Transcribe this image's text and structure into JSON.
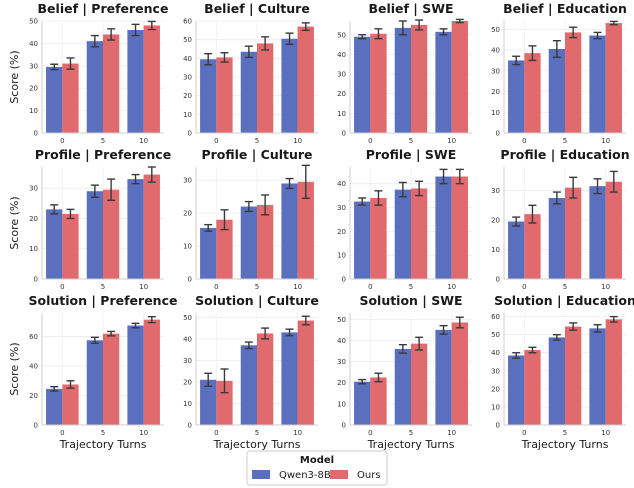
{
  "chart_data": {
    "type": "bar",
    "rows": [
      "Belief",
      "Profile",
      "Solution"
    ],
    "cols": [
      "Preference",
      "Culture",
      "SWE",
      "Education"
    ],
    "categories": [
      "0",
      "5",
      "10"
    ],
    "xlabel": "Trajectory Turns",
    "ylabel": "Score (%)",
    "legend": {
      "title": "Model",
      "position": "bottom-center"
    },
    "series_meta": [
      {
        "name": "Qwen3-8B",
        "color": "#5b6fbf"
      },
      {
        "name": "Ours",
        "color": "#e06a6d"
      }
    ],
    "panels": [
      {
        "title": "Belief | Preference",
        "ylim": [
          0,
          50
        ],
        "yticks": [
          0,
          10,
          20,
          30,
          40,
          50
        ],
        "series": [
          {
            "values": [
              29.5,
              41,
              46
            ],
            "err": [
              1.2,
              2.5,
              2.5
            ]
          },
          {
            "values": [
              31,
              44,
              48
            ],
            "err": [
              2.5,
              2.5,
              1.8
            ]
          }
        ]
      },
      {
        "title": "Belief | Culture",
        "ylim": [
          0,
          60
        ],
        "yticks": [
          0,
          10,
          20,
          30,
          40,
          50,
          60
        ],
        "series": [
          {
            "values": [
              39.5,
              43.5,
              50.5
            ],
            "err": [
              3,
              3,
              3
            ]
          },
          {
            "values": [
              40.5,
              48,
              57
            ],
            "err": [
              2.5,
              3.5,
              2
            ]
          }
        ]
      },
      {
        "title": "Belief | SWE",
        "ylim": [
          0,
          57
        ],
        "yticks": [
          0,
          10,
          20,
          30,
          40,
          50
        ],
        "series": [
          {
            "values": [
              49,
              53.5,
              51.5
            ],
            "err": [
              1,
              3.5,
              1.5
            ]
          },
          {
            "values": [
              50.5,
              55,
              57
            ],
            "err": [
              2.5,
              2.5,
              0.8
            ]
          }
        ]
      },
      {
        "title": "Belief | Education",
        "ylim": [
          0,
          54
        ],
        "yticks": [
          0,
          10,
          20,
          30,
          40,
          50
        ],
        "series": [
          {
            "values": [
              35,
              40.5,
              47
            ],
            "err": [
              2,
              4,
              1.5
            ]
          },
          {
            "values": [
              38.5,
              48.5,
              53
            ],
            "err": [
              3.5,
              2.5,
              0.8
            ]
          }
        ]
      },
      {
        "title": "Profile | Preference",
        "ylim": [
          0,
          37
        ],
        "yticks": [
          0,
          10,
          20,
          30
        ],
        "series": [
          {
            "values": [
              23,
              29,
              33
            ],
            "err": [
              1.5,
              2,
              1.5
            ]
          },
          {
            "values": [
              21.5,
              29.5,
              34.5
            ],
            "err": [
              1.5,
              3.5,
              2.5
            ]
          }
        ]
      },
      {
        "title": "Profile | Culture",
        "ylim": [
          0,
          34
        ],
        "yticks": [
          0,
          10,
          20,
          30
        ],
        "series": [
          {
            "values": [
              15.5,
              22,
              29
            ],
            "err": [
              1,
              1.5,
              1.5
            ]
          },
          {
            "values": [
              18,
              22.5,
              29.5
            ],
            "err": [
              3,
              3,
              5
            ]
          }
        ]
      },
      {
        "title": "Profile | SWE",
        "ylim": [
          0,
          47
        ],
        "yticks": [
          0,
          10,
          20,
          30,
          40
        ],
        "series": [
          {
            "values": [
              32.5,
              37.5,
              43
            ],
            "err": [
              1.5,
              3,
              3
            ]
          },
          {
            "values": [
              34,
              38,
              43
            ],
            "err": [
              3,
              3,
              3
            ]
          }
        ]
      },
      {
        "title": "Profile | Education",
        "ylim": [
          0,
          38
        ],
        "yticks": [
          0,
          10,
          20,
          30
        ],
        "series": [
          {
            "values": [
              19.5,
              27.5,
              31.5
            ],
            "err": [
              1.5,
              2,
              2.5
            ]
          },
          {
            "values": [
              22,
              31,
              33
            ],
            "err": [
              3,
              3.5,
              3.5
            ]
          }
        ]
      },
      {
        "title": "Solution | Preference",
        "ylim": [
          0,
          76
        ],
        "yticks": [
          0,
          20,
          40,
          60
        ],
        "series": [
          {
            "values": [
              24.5,
              57.5,
              67.5
            ],
            "err": [
              1.5,
              2,
              1.5
            ]
          },
          {
            "values": [
              27.5,
              62,
              71.5
            ],
            "err": [
              2.5,
              1.5,
              2
            ]
          }
        ]
      },
      {
        "title": "Solution | Culture",
        "ylim": [
          0,
          52
        ],
        "yticks": [
          0,
          10,
          20,
          30,
          40,
          50
        ],
        "series": [
          {
            "values": [
              21,
              37,
              43
            ],
            "err": [
              3,
              1.5,
              1.5
            ]
          },
          {
            "values": [
              20.5,
              42.5,
              48.5
            ],
            "err": [
              5.5,
              2.5,
              2
            ]
          }
        ]
      },
      {
        "title": "Solution | SWE",
        "ylim": [
          0,
          53
        ],
        "yticks": [
          0,
          10,
          20,
          30,
          40,
          50
        ],
        "series": [
          {
            "values": [
              20.5,
              36,
              45
            ],
            "err": [
              1,
              2,
              2
            ]
          },
          {
            "values": [
              22.5,
              38.5,
              48.5
            ],
            "err": [
              2,
              3,
              2.5
            ]
          }
        ]
      },
      {
        "title": "Solution | Education",
        "ylim": [
          0,
          62
        ],
        "yticks": [
          0,
          10,
          20,
          30,
          40,
          50,
          60
        ],
        "series": [
          {
            "values": [
              38.5,
              48.5,
              53.5
            ],
            "err": [
              1.5,
              1.5,
              2
            ]
          },
          {
            "values": [
              41.5,
              54.5,
              58.5
            ],
            "err": [
              1.5,
              2,
              1.5
            ]
          }
        ]
      }
    ]
  }
}
